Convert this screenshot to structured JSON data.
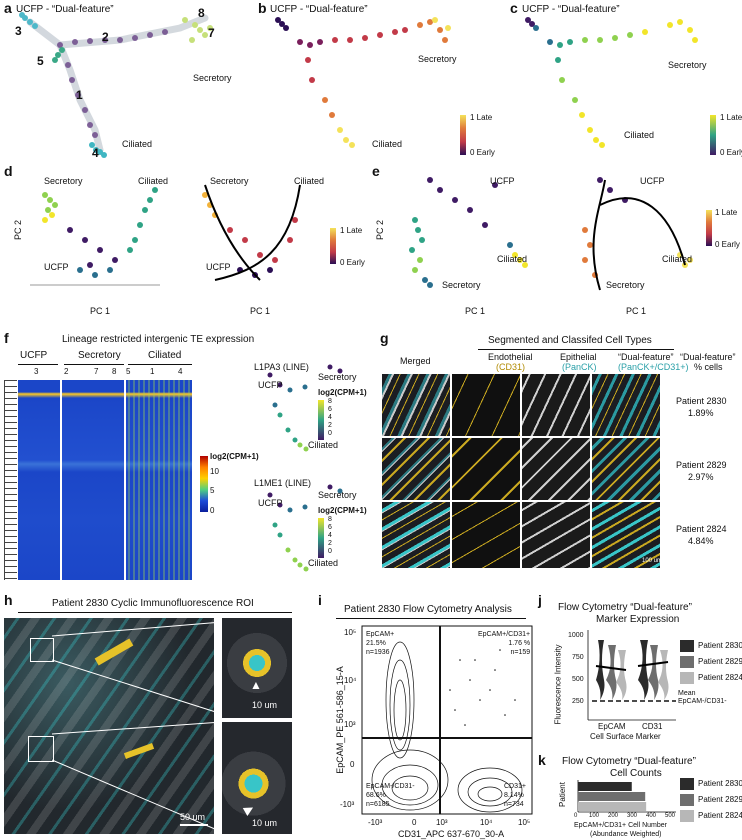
{
  "panels": {
    "a": {
      "letter": "a",
      "title": "UCFP - “Dual-feature”",
      "clusters": [
        "3",
        "2",
        "8",
        "7",
        "5",
        "1",
        "4"
      ],
      "labels": [
        "Secretory",
        "Ciliated"
      ]
    },
    "b": {
      "letter": "b",
      "title": "UCFP - “Dual-feature”",
      "labels": [
        "Secretory",
        "Ciliated"
      ],
      "scale": {
        "hi": "1 Late",
        "lo": "0 Early"
      }
    },
    "c": {
      "letter": "c",
      "title": "UCFP - “Dual-feature”",
      "labels": [
        "Secretory",
        "Ciliated"
      ],
      "scale": {
        "hi": "1 Late",
        "lo": "0 Early"
      }
    },
    "d": {
      "letter": "d",
      "labels": [
        "Secretory",
        "Ciliated",
        "UCFP"
      ],
      "xlabel": "PC 1",
      "ylabel": "PC 2",
      "xticks": [
        "-100",
        "-50",
        "0",
        "50",
        "100"
      ],
      "yticks": [
        "50",
        "0",
        "-50"
      ],
      "scale": {
        "hi": "1 Late",
        "lo": "0 Early"
      }
    },
    "e": {
      "letter": "e",
      "labels": [
        "UCFP",
        "Ciliated",
        "Secretory"
      ],
      "xlabel": "PC 1",
      "ylabel": "PC 2",
      "xticks": [
        "-50",
        "0",
        "50",
        "100",
        "150"
      ],
      "yticks": [
        "120",
        "80",
        "40",
        "0",
        "-40"
      ],
      "scale": {
        "hi": "1 Late",
        "lo": "0 Early"
      }
    },
    "f": {
      "letter": "f",
      "title": "Lineage restricted intergenic TE expression",
      "groups": [
        {
          "name": "UCFP",
          "clusters": [
            "3"
          ]
        },
        {
          "name": "Secretory",
          "clusters": [
            "2",
            "7",
            "8"
          ]
        },
        {
          "name": "Ciliated",
          "clusters": [
            "5",
            "1",
            "4"
          ]
        }
      ],
      "legend_title": "log2(CPM+1)",
      "legend_ticks": [
        "10",
        "5",
        "0"
      ],
      "sub": [
        {
          "name": "L1PA3 (LINE)",
          "labels": [
            "UCFP",
            "Secretory",
            "Ciliated"
          ],
          "legend_title": "log2(CPM+1)",
          "ticks": [
            "8",
            "6",
            "4",
            "2",
            "0"
          ]
        },
        {
          "name": "L1ME1 (LINE)",
          "labels": [
            "UCFP",
            "Secretory",
            "Ciliated"
          ],
          "legend_title": "log2(CPM+1)",
          "ticks": [
            "8",
            "6",
            "4",
            "2",
            "0"
          ]
        }
      ]
    },
    "g": {
      "letter": "g",
      "title": "Segmented and Classifed Cell Types",
      "col_merged": "Merged",
      "cols": [
        {
          "l1": "Endothelial",
          "l2": "(CD31)"
        },
        {
          "l1": "Epithelial",
          "l2": "(PanCK)"
        },
        {
          "l1": "“Dual-feature”",
          "l2": "(PanCK+/CD31+)"
        }
      ],
      "pct_col": {
        "l1": "“Dual-feature”",
        "l2": "% cells"
      },
      "rows": [
        {
          "patient": "Patient 2830",
          "pct": "1.89%"
        },
        {
          "patient": "Patient 2829",
          "pct": "2.97%"
        },
        {
          "patient": "Patient 2824",
          "pct": "4.84%"
        }
      ],
      "scalebar": "100 um"
    },
    "h": {
      "letter": "h",
      "title": "Patient 2830 Cyclic Immunofluorescence ROI",
      "scalebar_main": "50 um",
      "scalebar_inset1": "10 um",
      "scalebar_inset2": "10 um"
    },
    "i": {
      "letter": "i",
      "title": "Patient 2830 Flow Cytometry Analysis",
      "xlabel": "CD31_APC 637-670_30-A",
      "ylabel": "EpCAM_PE 561-586_15-A",
      "xticks": [
        "-10³",
        "0",
        "10³",
        "10⁴",
        "10⁵"
      ],
      "yticks": [
        "10⁵",
        "10⁴",
        "10³",
        "0",
        "-10³"
      ],
      "quadrants": [
        {
          "lines": [
            "EpCAM+",
            "21.5%",
            "n=1936"
          ]
        },
        {
          "lines": [
            "EpCAM+/CD31+",
            "1.76 %",
            "n=159"
          ]
        },
        {
          "lines": [
            "EpCAM-/CD31-",
            "68.6%",
            "n=6185"
          ]
        },
        {
          "lines": [
            "CD31+",
            "8.14%",
            "n=734"
          ]
        }
      ]
    },
    "j": {
      "letter": "j",
      "title1": "Flow Cytometry “Dual-feature”",
      "title2": "Marker Expression",
      "ylabel": "Fluorescence Intensity",
      "xlabel": "Cell Surface Marker",
      "categories": [
        "EpCAM",
        "CD31"
      ],
      "yticks": [
        "1000",
        "750",
        "500",
        "250"
      ],
      "mean_label1": "Mean",
      "mean_label2": "EpCAM-/CD31-"
    },
    "k": {
      "letter": "k",
      "title1": "Flow Cytometry “Dual-feature”",
      "title2": "Cell Counts",
      "ylabel": "Patient",
      "xlabel1": "EpCAM+/CD31+ Cell Number",
      "xlabel2": "(Abundance Weighted)",
      "xticks": [
        "0",
        "100",
        "200",
        "300",
        "400",
        "500"
      ]
    }
  },
  "legend_patients": [
    "Patient 2830",
    "Patient 2829",
    "Patient 2824"
  ],
  "colors": {
    "late": "#f4e25a",
    "mid": "#c23a48",
    "early": "#2b0f54",
    "viridis_hi": "#f2e52a",
    "viridis_mid": "#2fa385",
    "viridis_lo": "#3f1b64",
    "cyan": "#38c5c8",
    "yellow": "#e6c229"
  },
  "chart_data": [
    {
      "type": "bar",
      "title": "Flow Cytometry “Dual-feature” Cell Counts",
      "categories": [
        "Patient 2830",
        "Patient 2829",
        "Patient 2824"
      ],
      "values": [
        280,
        350,
        355
      ],
      "xlabel": "EpCAM+/CD31+ Cell Number (Abundance Weighted)",
      "ylabel": "Patient",
      "xlim": [
        0,
        500
      ]
    },
    {
      "type": "scatter",
      "title": "Flow Cytometry “Dual-feature” Marker Expression",
      "categories": [
        "EpCAM",
        "CD31"
      ],
      "series": [
        {
          "name": "Patient 2830",
          "values": [
            600,
            555
          ]
        },
        {
          "name": "Patient 2829",
          "values": [
            590,
            620
          ]
        },
        {
          "name": "Patient 2824",
          "values": [
            585,
            635
          ]
        }
      ],
      "ylabel": "Fluorescence Intensity",
      "xlabel": "Cell Surface Marker",
      "reference_line": 250,
      "ylim": [
        0,
        1000
      ]
    }
  ]
}
